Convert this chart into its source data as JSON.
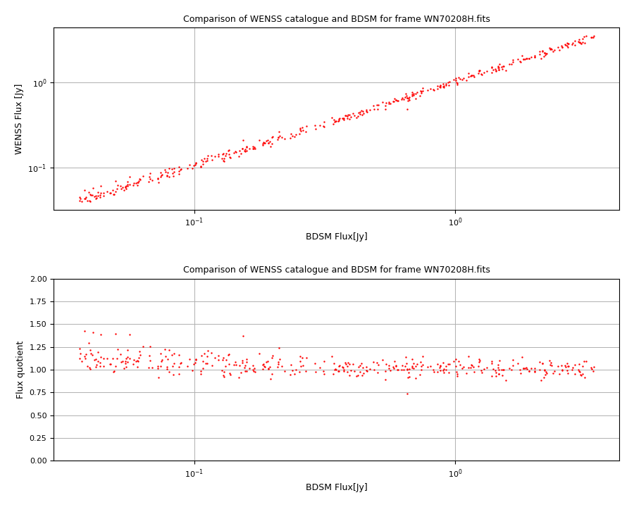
{
  "title": "Comparison of WENSS catalogue and BDSM for frame WN70208H.fits",
  "xlabel1": "BDSM Flux[Jy]",
  "ylabel1": "WENSS Flux [Jy]",
  "xlabel2": "BDSM Flux[Jy]",
  "ylabel2": "Flux quotient",
  "dot_color": "#ff0000",
  "dot_size": 3,
  "background_color": "#ffffff",
  "grid_color": "#b0b0b0",
  "ylim2": [
    0.0,
    2.0
  ],
  "yticks2": [
    0.0,
    0.25,
    0.5,
    0.75,
    1.0,
    1.25,
    1.5,
    1.75,
    2.0
  ],
  "title_fontsize": 9,
  "label_fontsize": 9,
  "tick_fontsize": 8,
  "seed": 42,
  "n_points": 400,
  "bdsm_log_min": -1.45,
  "bdsm_log_max": 0.55
}
